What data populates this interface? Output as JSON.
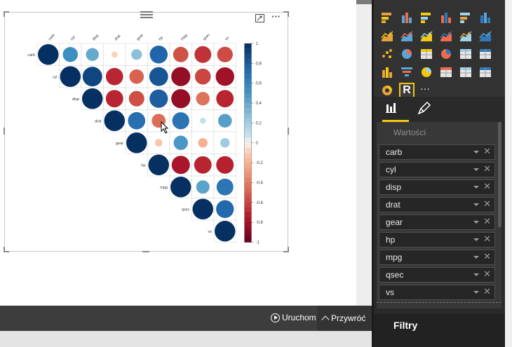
{
  "visual": {
    "more_options": "···",
    "focus_icon": "focus-mode-icon",
    "grip_icon": "drag-grip-icon"
  },
  "corrplot": {
    "variables": [
      "carb",
      "cyl",
      "disp",
      "drat",
      "gear",
      "hp",
      "mpg",
      "qsec",
      "vs"
    ],
    "correlations": [
      [
        1.0,
        0.53,
        0.39,
        -0.09,
        0.27,
        0.75,
        -0.55,
        -0.66,
        -0.57
      ],
      [
        null,
        1.0,
        0.9,
        -0.7,
        -0.49,
        0.83,
        -0.85,
        -0.59,
        -0.81
      ],
      [
        null,
        null,
        1.0,
        -0.71,
        -0.56,
        0.79,
        -0.85,
        -0.43,
        -0.71
      ],
      [
        null,
        null,
        null,
        1.0,
        0.7,
        -0.45,
        0.68,
        0.09,
        0.44
      ],
      [
        null,
        null,
        null,
        null,
        1.0,
        -0.13,
        0.48,
        -0.21,
        0.21
      ],
      [
        null,
        null,
        null,
        null,
        null,
        1.0,
        -0.78,
        -0.71,
        -0.72
      ],
      [
        null,
        null,
        null,
        null,
        null,
        null,
        1.0,
        0.42,
        0.66
      ],
      [
        null,
        null,
        null,
        null,
        null,
        null,
        null,
        1.0,
        0.74
      ],
      [
        null,
        null,
        null,
        null,
        null,
        null,
        null,
        null,
        1.0
      ]
    ],
    "colorbar_ticks": [
      "1",
      "0.8",
      "0.6",
      "0.4",
      "0.2",
      "0",
      "-0.2",
      "-0.4",
      "-0.6",
      "-0.8",
      "-1"
    ],
    "colors": {
      "positive": "#053061",
      "neutral": "#f7f7f7",
      "negative": "#67001f"
    }
  },
  "bottom_bar": {
    "run_label": "Uruchom",
    "collapse_label": "Przywróć"
  },
  "panel": {
    "visualizations": [
      "stacked-bar-icon",
      "stacked-column-icon",
      "clustered-bar-icon",
      "clustered-column-icon",
      "100-bar-icon",
      "100-column-icon",
      "line-chart-icon",
      "area-chart-icon",
      "stacked-area-icon",
      "line-column-icon",
      "line-clustered-icon",
      "ribbon-chart-icon",
      "scatter-icon",
      "pie-icon",
      "treemap-icon",
      "globe-map-icon",
      "table-icon",
      "matrix-icon",
      "filled-map-icon",
      "funnel-icon",
      "gauge-icon",
      "card-icon",
      "multirow-card-icon",
      "slicer-icon",
      "donut-icon",
      "r-visual-icon",
      "more-visuals-icon"
    ],
    "more_label": "···",
    "r_label": "R",
    "values_label": "Wartości",
    "fields": [
      "carb",
      "cyl",
      "disp",
      "drat",
      "gear",
      "hp",
      "mpg",
      "qsec",
      "vs"
    ],
    "filters_label": "Filtry",
    "accent_color": "#f2c811"
  }
}
